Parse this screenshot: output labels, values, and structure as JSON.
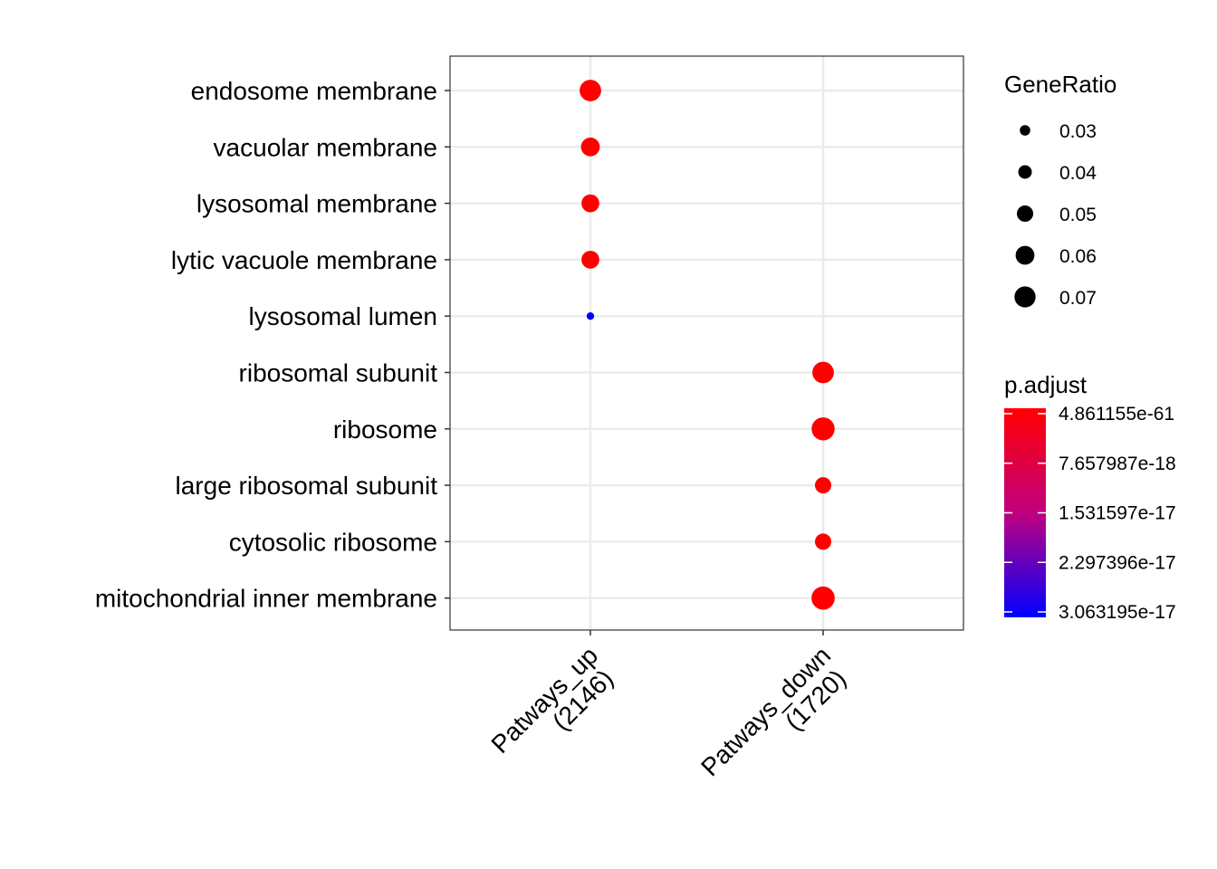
{
  "chart_data": {
    "type": "scatter",
    "title": "",
    "xlabel": "",
    "ylabel": "",
    "grid": true,
    "legend_placement": "right",
    "categories_y": [
      "endosome membrane",
      "vacuolar membrane",
      "lysosomal membrane",
      "lytic vacuole membrane",
      "lysosomal lumen",
      "ribosomal subunit",
      "ribosome",
      "large ribosomal subunit",
      "cytosolic ribosome",
      "mitochondrial inner membrane"
    ],
    "categories_x": [
      {
        "line1": "Patways_up",
        "line2": "(2146)"
      },
      {
        "line1": "Patways_down",
        "line2": "(1720)"
      }
    ],
    "points": [
      {
        "x": 0,
        "term": "endosome membrane",
        "gene_ratio": 0.072,
        "p_adjust": 4.86e-61
      },
      {
        "x": 0,
        "term": "vacuolar membrane",
        "gene_ratio": 0.06,
        "p_adjust": 4.86e-61
      },
      {
        "x": 0,
        "term": "lysosomal membrane",
        "gene_ratio": 0.056,
        "p_adjust": 4.86e-61
      },
      {
        "x": 0,
        "term": "lytic vacuole membrane",
        "gene_ratio": 0.056,
        "p_adjust": 4.86e-61
      },
      {
        "x": 0,
        "term": "lysosomal lumen",
        "gene_ratio": 0.022,
        "p_adjust": 3.063195e-17
      },
      {
        "x": 1,
        "term": "ribosomal subunit",
        "gene_ratio": 0.072,
        "p_adjust": 4.86e-61
      },
      {
        "x": 1,
        "term": "ribosome",
        "gene_ratio": 0.079,
        "p_adjust": 4.86e-61
      },
      {
        "x": 1,
        "term": "large ribosomal subunit",
        "gene_ratio": 0.05,
        "p_adjust": 4.86e-61
      },
      {
        "x": 1,
        "term": "cytosolic ribosome",
        "gene_ratio": 0.05,
        "p_adjust": 4.86e-61
      },
      {
        "x": 1,
        "term": "mitochondrial inner membrane",
        "gene_ratio": 0.08,
        "p_adjust": 4.86e-61
      }
    ],
    "size_legend": {
      "title": "GeneRatio",
      "values": [
        0.03,
        0.04,
        0.05,
        0.06,
        0.07
      ],
      "labels": [
        "0.03",
        "0.04",
        "0.05",
        "0.06",
        "0.07"
      ]
    },
    "color_legend": {
      "title": "p.adjust",
      "low_color": "#ff0000",
      "high_color": "#0000ff",
      "labels": [
        "4.861155e-61",
        "7.657987e-18",
        "1.531597e-17",
        "2.297396e-17",
        "3.063195e-17"
      ],
      "values": [
        4.861155e-61,
        7.657987e-18,
        1.531597e-17,
        2.297396e-17,
        3.063195e-17
      ]
    }
  }
}
